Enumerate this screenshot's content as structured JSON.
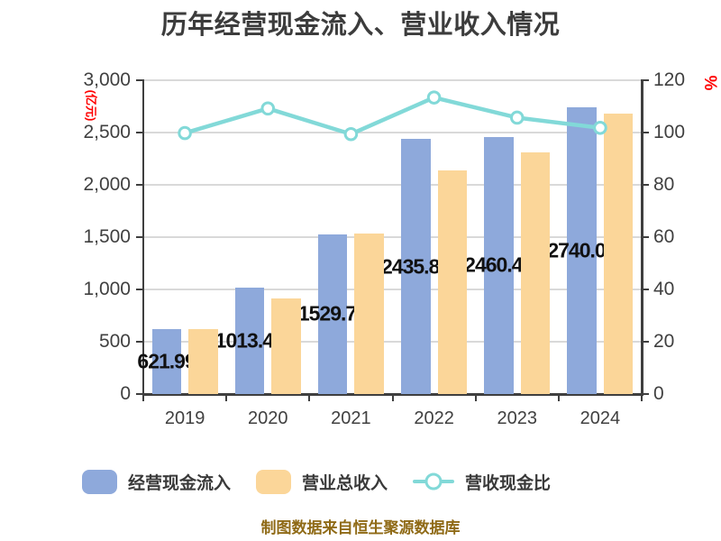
{
  "title": "历年经营现金流入、营业收入情况",
  "footer": "制图数据来自恒生聚源数据库",
  "chart_data": {
    "type": "bar",
    "subtype": "grouped-bars-with-line-overlay",
    "categories": [
      "2019",
      "2020",
      "2021",
      "2022",
      "2023",
      "2024"
    ],
    "series": [
      {
        "name": "经营现金流入",
        "kind": "bar",
        "axis": "left",
        "color": "#8EA9DB",
        "values": [
          621.99,
          1013.44,
          1529.74,
          2435.83,
          2460.41,
          2740.0
        ],
        "labels": [
          "621.99",
          "1013.44",
          "1529.74",
          "2435.83",
          "2460.41",
          "2740.00"
        ]
      },
      {
        "name": "营业总收入",
        "kind": "bar",
        "axis": "left",
        "color": "#FBD699",
        "values": [
          619,
          910,
          1538,
          2138,
          2310,
          2683
        ]
      },
      {
        "name": "营收现金比",
        "kind": "line",
        "axis": "right",
        "color": "#82D9D8",
        "marker_fill": "#FFFFFF",
        "values": [
          99.8,
          109.2,
          99.4,
          113.4,
          105.7,
          101.8
        ]
      }
    ],
    "left_axis": {
      "label": "(亿元)",
      "label_color": "#FF0000",
      "min": 0,
      "max": 3000,
      "step": 500,
      "tick_labels": [
        "0",
        "500",
        "1,000",
        "1,500",
        "2,000",
        "2,500",
        "3,000"
      ]
    },
    "right_axis": {
      "label": "%",
      "label_color": "#FF0000",
      "min": 0,
      "max": 120,
      "step": 20,
      "tick_labels": [
        "0",
        "20",
        "40",
        "60",
        "80",
        "100",
        "120"
      ]
    },
    "legend_position": "bottom",
    "grid": true,
    "colors": {
      "gridline": "#D9D9D9",
      "axis": "#3F3F3F",
      "tick_label": "#404040",
      "value_label": "#111111",
      "title": "#3C3C3C",
      "footer": "#8F6A16"
    }
  }
}
